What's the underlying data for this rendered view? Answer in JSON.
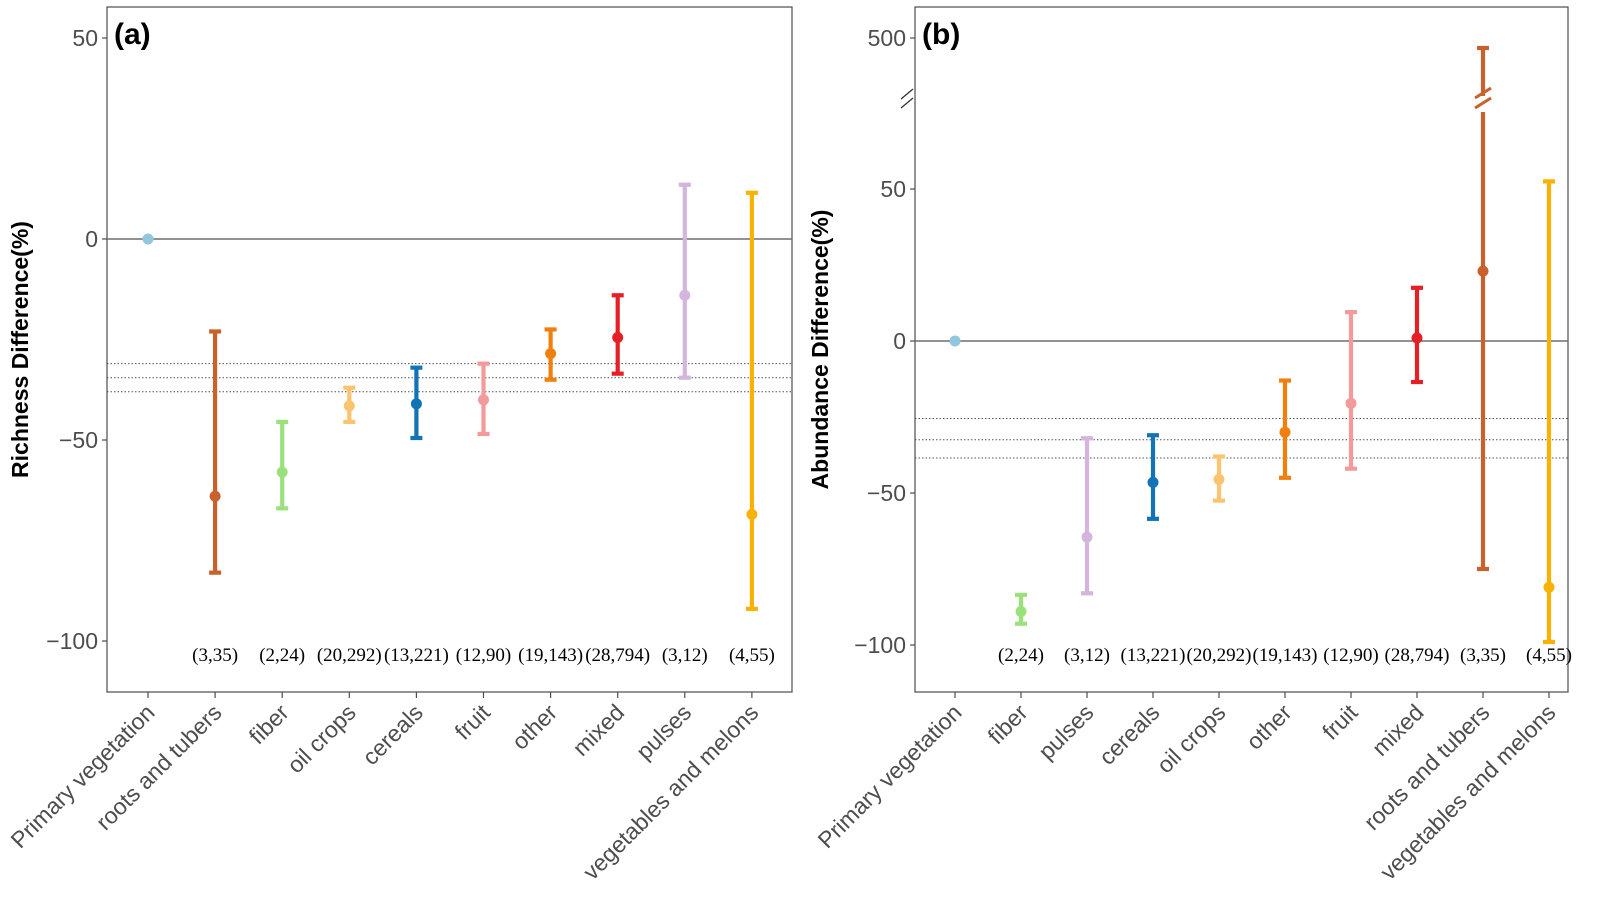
{
  "chart_data": [
    {
      "type": "scatter",
      "panel_label": "(a)",
      "ylabel": "Richness Difference(%)",
      "xlabel": "",
      "ylim": [
        -112,
        57
      ],
      "yticks": [
        50,
        0,
        -50,
        -100
      ],
      "ytick_labels": [
        "50",
        "0",
        "−50",
        "−100"
      ],
      "zero_line": 0,
      "reference_lines": [
        -31,
        -34.5,
        -38
      ],
      "categories": [
        "Primary vegetation",
        "roots and tubers",
        "fiber",
        "oil crops",
        "cereals",
        "fruit",
        "other",
        "mixed",
        "pulses",
        "vegetables and melons"
      ],
      "sample_sizes": [
        "",
        "(3,35)",
        "(2,24)",
        "(20,292)",
        "(13,221)",
        "(12,90)",
        "(19,143)",
        "(28,794)",
        "(3,12)",
        "(4,55)"
      ],
      "points": [
        {
          "category": "Primary vegetation",
          "mean": 0,
          "low": null,
          "high": null,
          "color": "#92c5de"
        },
        {
          "category": "roots and tubers",
          "mean": -64,
          "low": -83,
          "high": -23,
          "color": "#c8612b"
        },
        {
          "category": "fiber",
          "mean": -58,
          "low": -67,
          "high": -45.5,
          "color": "#9be17b"
        },
        {
          "category": "oil crops",
          "mean": -41.5,
          "low": -45.5,
          "high": -37,
          "color": "#fdc36e"
        },
        {
          "category": "cereals",
          "mean": -41,
          "low": -49.5,
          "high": -32,
          "color": "#1273b7"
        },
        {
          "category": "fruit",
          "mean": -40,
          "low": -48.5,
          "high": -31,
          "color": "#f49a9a"
        },
        {
          "category": "other",
          "mean": -28.5,
          "low": -35,
          "high": -22.5,
          "color": "#f07f0d"
        },
        {
          "category": "mixed",
          "mean": -24.5,
          "low": -33.5,
          "high": -14,
          "color": "#e41f26"
        },
        {
          "category": "pulses",
          "mean": -14,
          "low": -34.5,
          "high": 13.5,
          "color": "#d4b5dc"
        },
        {
          "category": "vegetables and melons",
          "mean": -68.5,
          "low": -92,
          "high": 11.5,
          "color": "#f8b205"
        }
      ]
    },
    {
      "type": "scatter",
      "panel_label": "(b)",
      "ylabel": "Abundance Difference(%)",
      "xlabel": "",
      "ylim": [
        -115,
        80
      ],
      "axis_break": {
        "lower_top": 80,
        "upper_range": [
          420,
          520
        ]
      },
      "yticks": [
        500,
        50,
        0,
        -50,
        -100
      ],
      "ytick_labels": [
        "500",
        "50",
        "0",
        "−50",
        "−100"
      ],
      "zero_line": 0,
      "reference_lines": [
        -25.5,
        -32.5,
        -38.5
      ],
      "categories": [
        "Primary vegetation",
        "fiber",
        "pulses",
        "cereals",
        "oil crops",
        "other",
        "fruit",
        "mixed",
        "roots and tubers",
        "vegetables and melons"
      ],
      "sample_sizes": [
        "",
        "(2,24)",
        "(3,12)",
        "(13,221)",
        "(20,292)",
        "(19,143)",
        "(12,90)",
        "(28,794)",
        "(3,35)",
        "(4,55)"
      ],
      "points": [
        {
          "category": "Primary vegetation",
          "mean": 0,
          "low": null,
          "high": null,
          "color": "#92c5de"
        },
        {
          "category": "fiber",
          "mean": -89,
          "low": -93,
          "high": -83.5,
          "color": "#9be17b"
        },
        {
          "category": "pulses",
          "mean": -64.5,
          "low": -83,
          "high": -32,
          "color": "#d4b5dc"
        },
        {
          "category": "cereals",
          "mean": -46.5,
          "low": -58.5,
          "high": -31,
          "color": "#1273b7"
        },
        {
          "category": "oil crops",
          "mean": -45.5,
          "low": -52.5,
          "high": -38,
          "color": "#fdc36e"
        },
        {
          "category": "other",
          "mean": -30,
          "low": -45,
          "high": -13,
          "color": "#f07f0d"
        },
        {
          "category": "fruit",
          "mean": -20.5,
          "low": -42,
          "high": 9.5,
          "color": "#f49a9a"
        },
        {
          "category": "mixed",
          "mean": 1,
          "low": -13.5,
          "high": 17.5,
          "color": "#e41f26"
        },
        {
          "category": "roots and tubers",
          "mean": 23,
          "low": -75,
          "high": 490,
          "color": "#c8612b"
        },
        {
          "category": "vegetables and melons",
          "mean": -81,
          "low": -99,
          "high": 52.5,
          "color": "#f8b205"
        }
      ]
    }
  ]
}
